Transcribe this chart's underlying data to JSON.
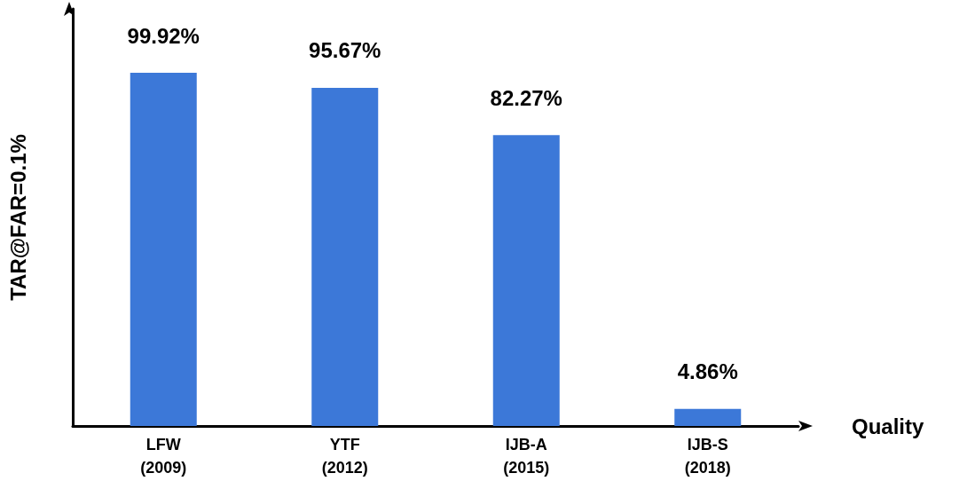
{
  "chart_data": {
    "type": "bar",
    "xlabel": "Quality",
    "ylabel": "TAR@FAR=0.1%",
    "categories": [
      "LFW\n(2009)",
      "YTF\n(2012)",
      "IJB-A\n(2015)",
      "IJB-S\n(2018)"
    ],
    "values": [
      99.92,
      95.67,
      82.27,
      4.86
    ],
    "value_labels": [
      "99.92%",
      "95.67%",
      "82.27%",
      "4.86%"
    ],
    "color": "#3c78d8",
    "ylim": [
      0,
      118
    ],
    "grid": false
  }
}
